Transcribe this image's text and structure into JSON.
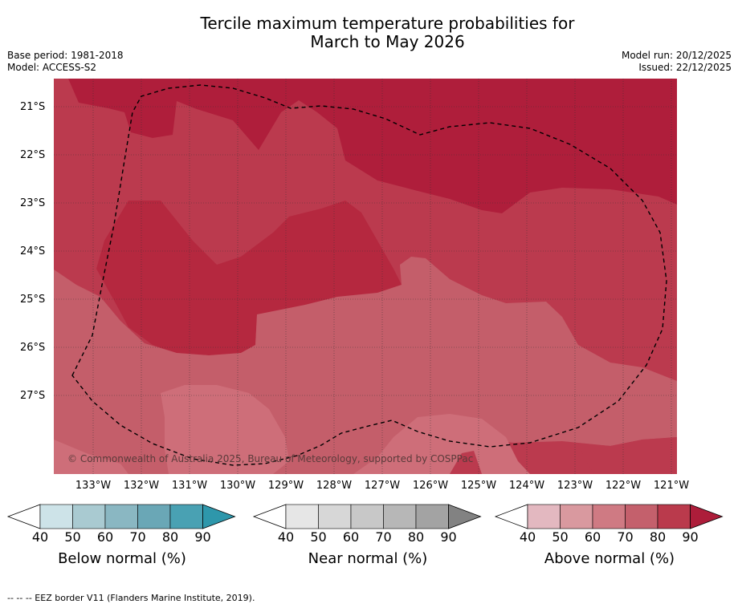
{
  "title_line1": "Tercile maximum temperature probabilities for",
  "title_line2": "March to May 2026",
  "base_period": "Base period: 1981-2018",
  "model": "Model: ACCESS-S2",
  "model_run": "Model run: 20/12/2025",
  "issued": "Issued: 22/12/2025",
  "copyright": "© Commonwealth of Australia 2025, Bureau of Meteorology, supported by COSPPac",
  "lat_labels": [
    "21°S",
    "22°S",
    "23°S",
    "24°S",
    "25°S",
    "26°S",
    "27°S"
  ],
  "lon_labels": [
    "133°W",
    "132°W",
    "131°W",
    "130°W",
    "129°W",
    "128°W",
    "127°W",
    "126°W",
    "125°W",
    "124°W",
    "123°W",
    "122°W",
    "121°W"
  ],
  "colorbars": [
    {
      "label": "Below normal (%)",
      "ticks": [
        "40",
        "50",
        "60",
        "70",
        "80",
        "90"
      ],
      "colors": [
        "#ffffff",
        "#cde3e8",
        "#a9cad1",
        "#8ab7c2",
        "#6aa7b6",
        "#49a1b3",
        "#2e97ab"
      ]
    },
    {
      "label": "Near normal (%)",
      "ticks": [
        "40",
        "50",
        "60",
        "70",
        "80",
        "90"
      ],
      "colors": [
        "#ffffff",
        "#e6e6e6",
        "#d7d7d7",
        "#c8c8c8",
        "#b7b7b7",
        "#a3a3a3",
        "#828282"
      ]
    },
    {
      "label": "Above normal (%)",
      "ticks": [
        "40",
        "50",
        "60",
        "70",
        "80",
        "90"
      ],
      "colors": [
        "#ffffff",
        "#e3b8c0",
        "#d9999f",
        "#cf7a83",
        "#c4606c",
        "#ba3a4c",
        "#ad1d3a"
      ]
    }
  ],
  "footnote": "--  --  -- EEZ border V11 (Flanders Marine Institute, 2019).",
  "legend_colors": {
    "above_70": "#c45e6a",
    "above_80": "#bb3a4e",
    "above_90": "#af1e3b",
    "above_60": "#ce6e79"
  }
}
